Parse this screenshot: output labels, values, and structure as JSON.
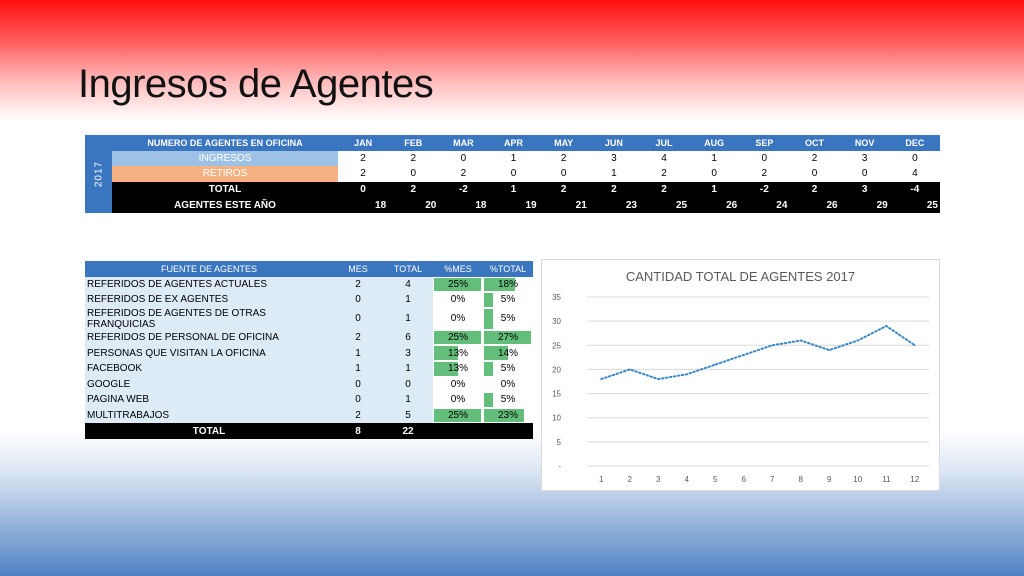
{
  "title": "Ingresos de Agentes",
  "monthly": {
    "year": "2017",
    "header_label": "NUMERO DE AGENTES EN OFICINA",
    "months": [
      "JAN",
      "FEB",
      "MAR",
      "APR",
      "MAY",
      "JUN",
      "JUL",
      "AUG",
      "SEP",
      "OCT",
      "NOV",
      "DEC"
    ],
    "rows": [
      {
        "label": "INGRESOS",
        "values": [
          "2",
          "2",
          "0",
          "1",
          "2",
          "3",
          "4",
          "1",
          "0",
          "2",
          "3",
          "0"
        ]
      },
      {
        "label": "RETIROS",
        "values": [
          "2",
          "0",
          "2",
          "0",
          "0",
          "1",
          "2",
          "0",
          "2",
          "0",
          "0",
          "4"
        ]
      },
      {
        "label": "TOTAL",
        "values": [
          "0",
          "2",
          "-2",
          "1",
          "2",
          "2",
          "2",
          "1",
          "-2",
          "2",
          "3",
          "-4"
        ]
      },
      {
        "label": "AGENTES ESTE AÑO",
        "values": [
          "18",
          "20",
          "18",
          "19",
          "21",
          "23",
          "25",
          "26",
          "24",
          "26",
          "29",
          "25"
        ]
      }
    ],
    "colors": {
      "header": "#3a75bf",
      "ingresos": "#9ec2e6",
      "retiros": "#f4b183"
    }
  },
  "sources": {
    "headers": [
      "FUENTE DE AGENTES",
      "MES",
      "TOTAL",
      "%MES",
      "%TOTAL"
    ],
    "rows": [
      {
        "name": "REFERIDOS DE AGENTES ACTUALES",
        "mes": "2",
        "total": "4",
        "pct_mes": "25%",
        "pct_total": "18%"
      },
      {
        "name": "REFERIDOS DE EX AGENTES",
        "mes": "0",
        "total": "1",
        "pct_mes": "0%",
        "pct_total": "5%"
      },
      {
        "name": "REFERIDOS DE AGENTES DE OTRAS FRANQUICIAS",
        "mes": "0",
        "total": "1",
        "pct_mes": "0%",
        "pct_total": "5%"
      },
      {
        "name": "REFERIDOS DE PERSONAL DE OFICINA",
        "mes": "2",
        "total": "6",
        "pct_mes": "25%",
        "pct_total": "27%"
      },
      {
        "name": "PERSONAS QUE VISITAN LA OFICINA",
        "mes": "1",
        "total": "3",
        "pct_mes": "13%",
        "pct_total": "14%"
      },
      {
        "name": "FACEBOOK",
        "mes": "1",
        "total": "1",
        "pct_mes": "13%",
        "pct_total": "5%"
      },
      {
        "name": "GOOGLE",
        "mes": "0",
        "total": "0",
        "pct_mes": "0%",
        "pct_total": "0%"
      },
      {
        "name": "PAGINA WEB",
        "mes": "0",
        "total": "1",
        "pct_mes": "0%",
        "pct_total": "5%"
      },
      {
        "name": "MULTITRABAJOS",
        "mes": "2",
        "total": "5",
        "pct_mes": "25%",
        "pct_total": "23%"
      }
    ],
    "total_row": {
      "label": "TOTAL",
      "mes": "8",
      "total": "22"
    },
    "bar_color": "#63be7b"
  },
  "chart_data": {
    "type": "line",
    "title": "CANTIDAD TOTAL DE AGENTES 2017",
    "x": [
      1,
      2,
      3,
      4,
      5,
      6,
      7,
      8,
      9,
      10,
      11,
      12
    ],
    "series": [
      {
        "values": [
          18,
          20,
          18,
          19,
          21,
          23,
          25,
          26,
          24,
          26,
          29,
          25
        ],
        "color": "#3a87c8",
        "style": "dotted"
      }
    ],
    "y_ticks": [
      "-",
      "5",
      "10",
      "15",
      "20",
      "25",
      "30",
      "35"
    ],
    "ylim": [
      0,
      35
    ],
    "grid": true
  }
}
